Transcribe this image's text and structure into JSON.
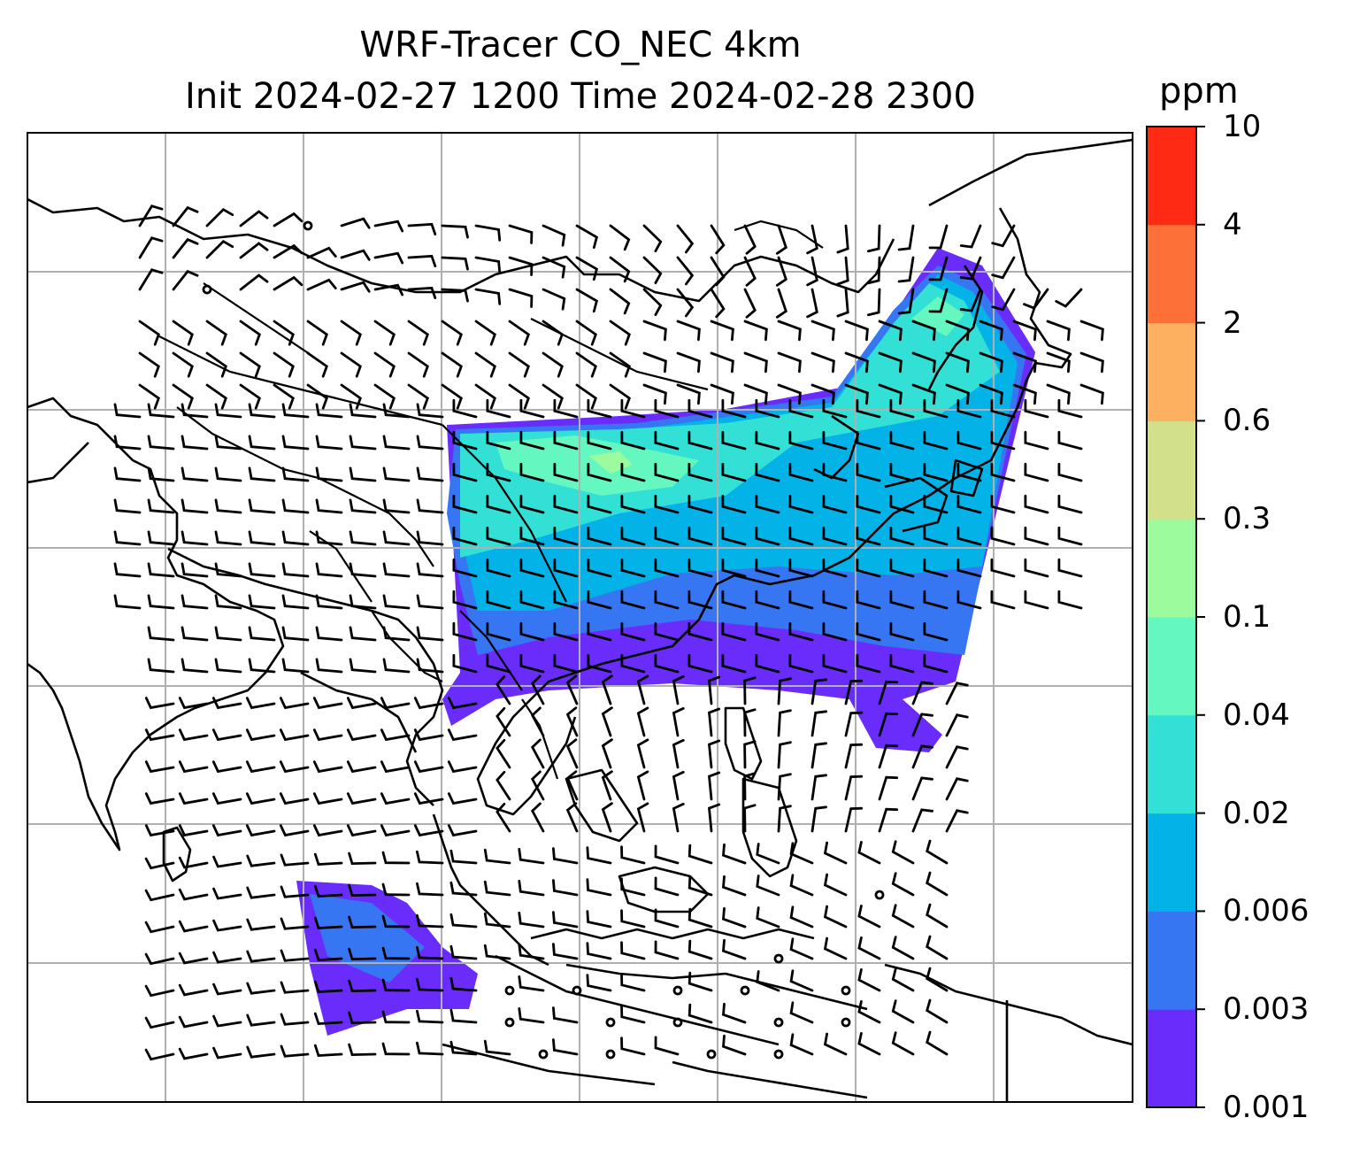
{
  "title": {
    "line1": "WRF-Tracer CO_NEC 4km",
    "line2": "Init 2024-02-27 1200 Time 2024-02-28 2300"
  },
  "colorbar": {
    "unit": "ppm",
    "ticks": [
      "0.001",
      "0.003",
      "0.006",
      "0.02",
      "0.04",
      "0.1",
      "0.3",
      "0.6",
      "2",
      "4",
      "10"
    ],
    "colors": [
      "#6a2cfa",
      "#3676f2",
      "#03b3e8",
      "#32e0d6",
      "#64f7c0",
      "#9cfb9c",
      "#d2e08a",
      "#fdb05f",
      "#fd7138",
      "#ff2a14"
    ]
  },
  "map": {
    "gridlines": true,
    "content": [
      "coastlines",
      "country borders",
      "CO tracer concentration field",
      "wind barbs"
    ]
  }
}
